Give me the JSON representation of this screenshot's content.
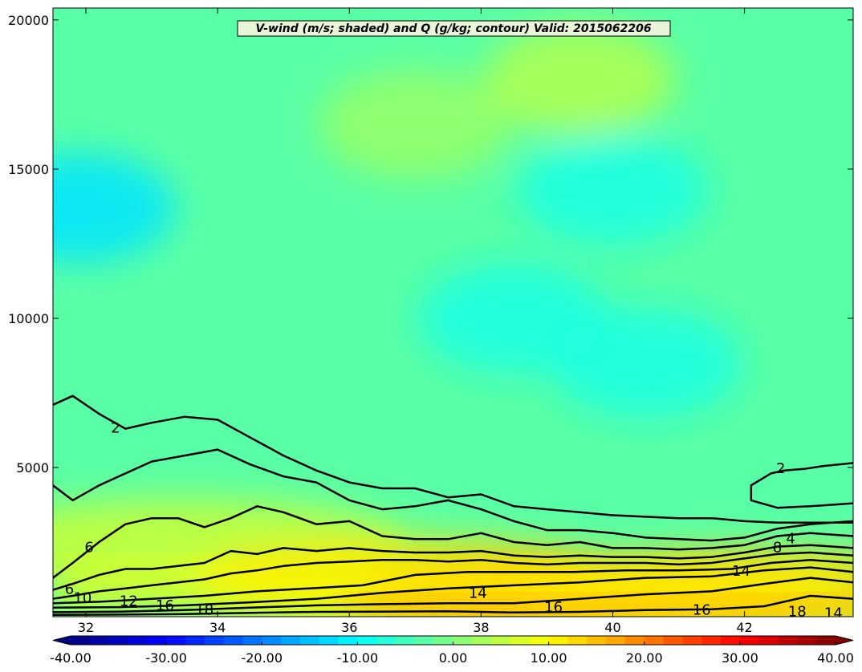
{
  "chart_data": {
    "type": "heatmap",
    "title": "V-wind (m/s; shaded) and Q (g/kg; contour) Valid: 2015062206",
    "xlabel": "",
    "ylabel": "",
    "xlim": [
      31.5,
      43.65
    ],
    "ylim": [
      0,
      20400
    ],
    "x_ticks": [
      32,
      34,
      36,
      38,
      40,
      42
    ],
    "y_ticks": [
      5000,
      10000,
      15000,
      20000
    ],
    "colorbar": {
      "min": -40,
      "max": 40,
      "ticks": [
        -40,
        -30,
        -20,
        -10,
        0,
        10,
        20,
        30,
        40
      ],
      "tick_labels": [
        "-40.00",
        "-30.00",
        "-20.00",
        "-10.00",
        "0.00",
        "10.00",
        "20.00",
        "30.00",
        "40.00"
      ],
      "colormap": "jet",
      "extend": "both"
    },
    "shaded_field": {
      "name": "V-wind",
      "background_value": -3,
      "features": [
        {
          "x": 31.9,
          "y": 13700,
          "value": -12
        },
        {
          "x": 38.5,
          "y": 10000,
          "value": -8
        },
        {
          "x": 40.5,
          "y": 8500,
          "value": -8
        },
        {
          "x": 40.0,
          "y": 14300,
          "value": -8
        },
        {
          "x": 37.0,
          "y": 16500,
          "value": 2
        },
        {
          "x": 39.5,
          "y": 18000,
          "value": 4
        },
        {
          "x": 33.5,
          "y": 2500,
          "value": 6
        },
        {
          "x": 37.0,
          "y": 1200,
          "value": 12
        },
        {
          "x": 39.5,
          "y": 600,
          "value": 16
        },
        {
          "x": 42.0,
          "y": 800,
          "value": 14
        }
      ]
    },
    "contours": [
      {
        "level": 2,
        "label": "2",
        "x": [
          31.5,
          31.8,
          32.2,
          32.6,
          33.0,
          33.5,
          34.0,
          34.5,
          35.0,
          35.5,
          36.0,
          36.5,
          37.0,
          37.5,
          38.0,
          38.5,
          39.0,
          39.5,
          40.0,
          40.5,
          41.0,
          41.5,
          42.0,
          42.5,
          43.0,
          43.65
        ],
        "y": [
          7100,
          7400,
          6800,
          6300,
          6500,
          6700,
          6600,
          6000,
          5400,
          4900,
          4500,
          4300,
          4300,
          4000,
          4100,
          3700,
          3600,
          3500,
          3400,
          3350,
          3300,
          3300,
          3200,
          3150,
          3150,
          3150
        ]
      },
      {
        "level": 2,
        "label": "2",
        "x": [
          43.65,
          43.2,
          42.9,
          42.6,
          42.4,
          42.1,
          42.1,
          42.5,
          43.0,
          43.65
        ],
        "y": [
          5150,
          5050,
          4950,
          4900,
          4800,
          4400,
          3900,
          3650,
          3700,
          3800
        ]
      },
      {
        "level": 4,
        "label": "4",
        "x": [
          31.5,
          31.8,
          32.2,
          32.6,
          33.0,
          33.5,
          34.0,
          34.5,
          35.0,
          35.5,
          36.0,
          36.5,
          37.0,
          37.5,
          38.0,
          38.5,
          39.0,
          39.5,
          40.0,
          40.5,
          41.0,
          41.5,
          42.0,
          42.5,
          43.0,
          43.65
        ],
        "y": [
          4400,
          3900,
          4400,
          4800,
          5200,
          5400,
          5600,
          5100,
          4700,
          4500,
          3900,
          3600,
          3700,
          3900,
          3600,
          3200,
          2900,
          2900,
          2800,
          2650,
          2600,
          2550,
          2650,
          2950,
          3100,
          3200
        ]
      },
      {
        "level": 6,
        "label": "6",
        "x": [
          31.5,
          31.8,
          32.2,
          32.6,
          33.0,
          33.4,
          33.8,
          34.2,
          34.6,
          35.0,
          35.5,
          36.0,
          36.5,
          37.0,
          37.5,
          38.0,
          38.5,
          39.0,
          39.5,
          40.0,
          40.5,
          41.0,
          41.5,
          42.0,
          42.5,
          43.0,
          43.65
        ],
        "y": [
          1300,
          1800,
          2500,
          3100,
          3300,
          3300,
          3000,
          3300,
          3700,
          3500,
          3100,
          3200,
          2700,
          2600,
          2600,
          2800,
          2500,
          2400,
          2500,
          2300,
          2300,
          2250,
          2300,
          2400,
          2700,
          2800,
          2700
        ]
      },
      {
        "level": 8,
        "label": "8",
        "x": [
          31.5,
          31.8,
          32.2,
          32.6,
          33.0,
          33.4,
          33.8,
          34.2,
          34.6,
          35.0,
          35.5,
          36.0,
          36.5,
          37.0,
          37.5,
          38.0,
          38.5,
          39.0,
          39.5,
          40.0,
          40.5,
          41.0,
          41.5,
          42.0,
          42.5,
          43.0,
          43.65
        ],
        "y": [
          900,
          1100,
          1400,
          1600,
          1600,
          1700,
          1800,
          2200,
          2100,
          2300,
          2200,
          2300,
          2200,
          2150,
          2150,
          2200,
          2050,
          2000,
          2050,
          2000,
          2000,
          1950,
          2000,
          2150,
          2350,
          2400,
          2300
        ]
      },
      {
        "level": 10,
        "label": "10",
        "x": [
          31.5,
          31.8,
          32.2,
          32.6,
          33.0,
          33.4,
          33.8,
          34.2,
          34.6,
          35.0,
          35.5,
          36.0,
          36.5,
          37.0,
          37.5,
          38.0,
          38.5,
          39.0,
          39.5,
          40.0,
          40.5,
          41.0,
          41.5,
          42.0,
          42.5,
          43.0,
          43.65
        ],
        "y": [
          600,
          700,
          850,
          950,
          1050,
          1150,
          1250,
          1450,
          1550,
          1700,
          1800,
          1850,
          1900,
          1900,
          1850,
          1900,
          1800,
          1750,
          1800,
          1800,
          1800,
          1750,
          1800,
          1950,
          2100,
          2150,
          2050
        ]
      },
      {
        "level": 12,
        "label": "12",
        "x": [
          31.5,
          32.2,
          33.0,
          33.8,
          34.6,
          35.4,
          36.2,
          37.0,
          37.8,
          38.6,
          39.4,
          40.2,
          41.0,
          41.8,
          42.4,
          43.0,
          43.65
        ],
        "y": [
          450,
          500,
          600,
          700,
          850,
          950,
          1050,
          1400,
          1500,
          1500,
          1500,
          1550,
          1550,
          1600,
          1800,
          1900,
          1800
        ]
      },
      {
        "level": 14,
        "label": "14",
        "x": [
          31.5,
          32.5,
          33.5,
          34.5,
          35.5,
          36.5,
          37.5,
          38.5,
          39.5,
          40.5,
          41.5,
          42.3,
          43.0,
          43.65
        ],
        "y": [
          300,
          320,
          380,
          480,
          600,
          800,
          950,
          1050,
          1150,
          1300,
          1350,
          1550,
          1650,
          1500
        ]
      },
      {
        "level": 16,
        "label": "16",
        "x": [
          31.5,
          32.5,
          33.5,
          34.5,
          35.5,
          36.5,
          37.5,
          38.5,
          39.5,
          40.5,
          41.5,
          42.3,
          43.0,
          43.65
        ],
        "y": [
          150,
          170,
          220,
          300,
          380,
          420,
          450,
          450,
          600,
          750,
          850,
          1100,
          1300,
          1150
        ]
      },
      {
        "level": 18,
        "label": "18",
        "x": [
          31.5,
          32.5,
          33.5,
          34.5,
          35.5,
          36.5,
          37.5,
          38.5,
          39.5,
          40.5,
          41.5,
          42.3,
          43.0,
          43.65
        ],
        "y": [
          60,
          70,
          90,
          130,
          160,
          170,
          180,
          140,
          160,
          220,
          250,
          350,
          700,
          600
        ]
      }
    ],
    "contour_label_positions": [
      {
        "text": "2",
        "x": 32.45,
        "y": 6300
      },
      {
        "text": "2",
        "x": 42.55,
        "y": 4950
      },
      {
        "text": "4",
        "x": 42.7,
        "y": 2600
      },
      {
        "text": "6",
        "x": 32.05,
        "y": 2300
      },
      {
        "text": "6",
        "x": 31.75,
        "y": 900
      },
      {
        "text": "8",
        "x": 42.5,
        "y": 2300
      },
      {
        "text": "10",
        "x": 31.95,
        "y": 600
      },
      {
        "text": "12",
        "x": 32.65,
        "y": 500
      },
      {
        "text": "14",
        "x": 37.95,
        "y": 770
      },
      {
        "text": "14",
        "x": 41.95,
        "y": 1500
      },
      {
        "text": "14",
        "x": 43.35,
        "y": 100
      },
      {
        "text": "16",
        "x": 33.2,
        "y": 350
      },
      {
        "text": "16",
        "x": 39.1,
        "y": 300
      },
      {
        "text": "16",
        "x": 41.35,
        "y": 200
      },
      {
        "text": "18",
        "x": 33.8,
        "y": 200
      },
      {
        "text": "18",
        "x": 42.8,
        "y": 150
      }
    ]
  }
}
